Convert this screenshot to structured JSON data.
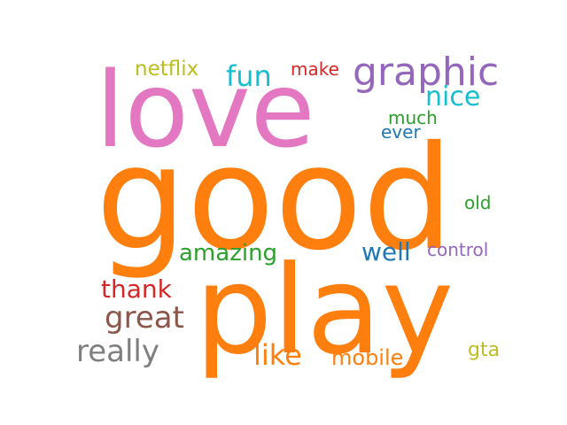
{
  "words": [
    {
      "text": "good",
      "color": "#ff7f0e"
    },
    {
      "text": "play",
      "color": "#ff7f0e"
    },
    {
      "text": "love",
      "color": "#e377c2"
    },
    {
      "text": "graphic",
      "color": "#9467bd"
    },
    {
      "text": "fun",
      "color": "#17becf"
    },
    {
      "text": "netflix",
      "color": "#bcbd22"
    },
    {
      "text": "make",
      "color": "#d62728"
    },
    {
      "text": "nice",
      "color": "#17becf"
    },
    {
      "text": "much",
      "color": "#2ca02c"
    },
    {
      "text": "ever",
      "color": "#1f77b4"
    },
    {
      "text": "old",
      "color": "#2ca02c"
    },
    {
      "text": "amazing",
      "color": "#2ca02c"
    },
    {
      "text": "well",
      "color": "#1f77b4"
    },
    {
      "text": "control",
      "color": "#9467bd"
    },
    {
      "text": "thank",
      "color": "#d62728"
    },
    {
      "text": "great",
      "color": "#8c564b"
    },
    {
      "text": "really",
      "color": "#7f7f7f"
    },
    {
      "text": "like",
      "color": "#ff7f0e"
    },
    {
      "text": "mobile",
      "color": "#ff7f0e"
    },
    {
      "text": "gta",
      "color": "#bcbd22"
    }
  ]
}
